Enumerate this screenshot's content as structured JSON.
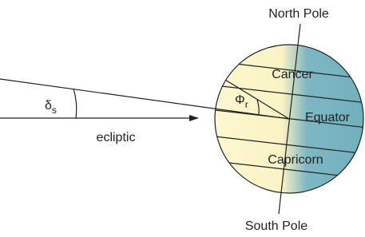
{
  "labels": {
    "north_pole": "North Pole",
    "south_pole": "South Pole",
    "cancer": "Cancer",
    "equator": "Equator",
    "capricorn": "Capricorn",
    "ecliptic": "ecliptic"
  },
  "angles": {
    "delta": {
      "symbol": "δ",
      "subscript": "s"
    },
    "phi": {
      "symbol": "Φ",
      "subscript": "r"
    }
  }
}
